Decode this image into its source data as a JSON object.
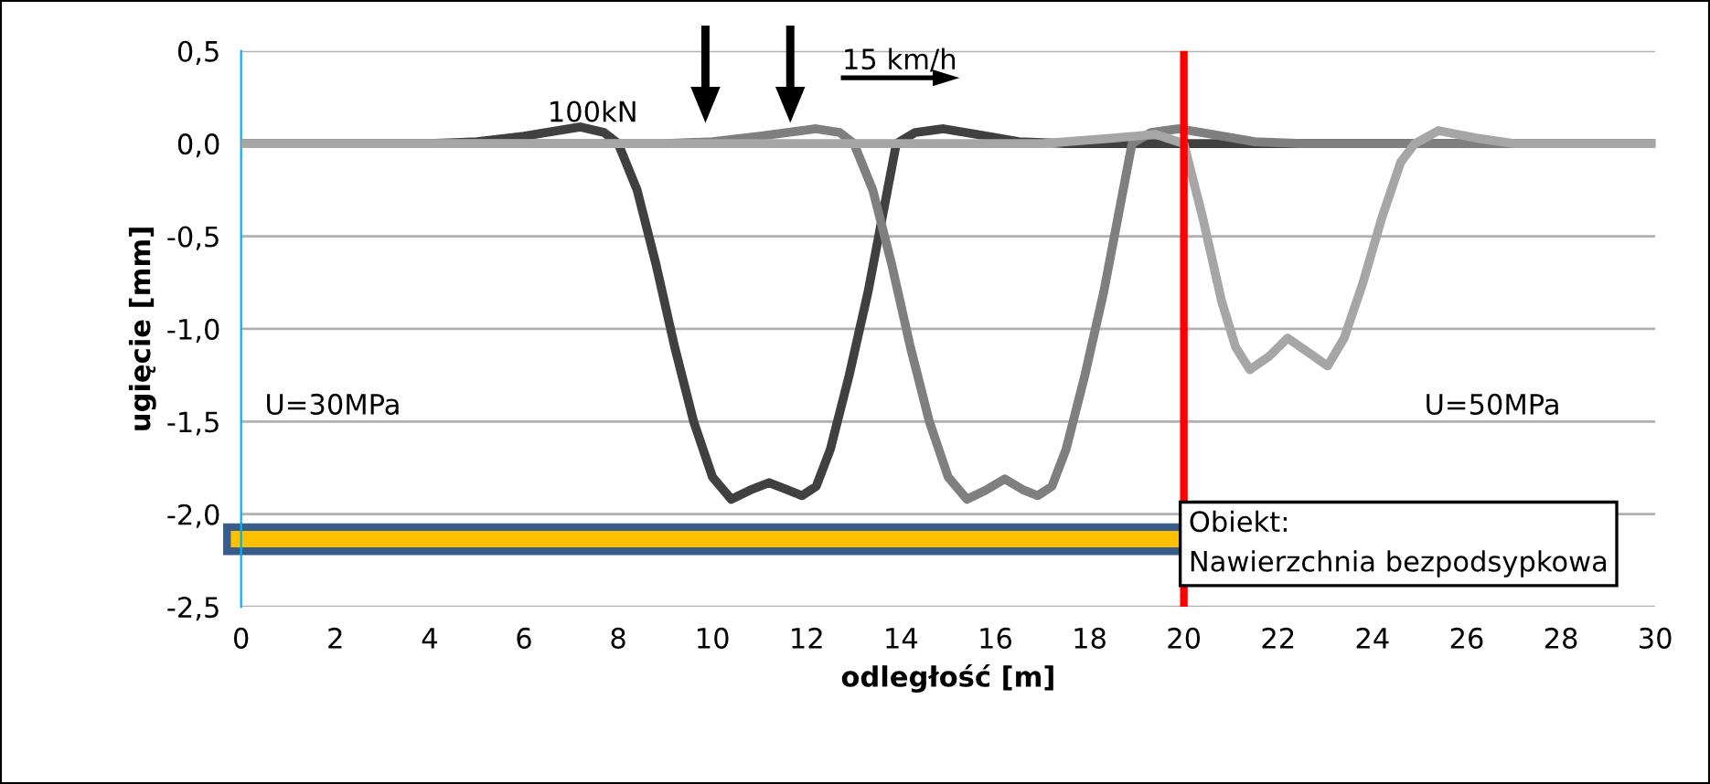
{
  "chart_data": {
    "type": "line",
    "xlabel": "odległość [m]",
    "ylabel": "ugięcie [mm]",
    "xlim": [
      0,
      30
    ],
    "xticks": [
      0,
      2,
      4,
      6,
      8,
      10,
      12,
      14,
      16,
      18,
      20,
      22,
      24,
      26,
      28,
      30
    ],
    "ylim": [
      -2.5,
      0.5
    ],
    "yticks": [
      {
        "value": 0.5,
        "label": "0,5"
      },
      {
        "value": 0,
        "label": "0,0"
      },
      {
        "value": -0.5,
        "label": "-0,5"
      },
      {
        "value": -1.0,
        "label": "-1,0"
      },
      {
        "value": -1.5,
        "label": "-1,5"
      },
      {
        "value": -2.0,
        "label": "-2,0"
      },
      {
        "value": -2.5,
        "label": "-2,5"
      }
    ],
    "grid": "y",
    "legend": false,
    "line_style": "solid",
    "marker": "none",
    "series": [
      {
        "color": "#404040",
        "x": [
          0,
          4,
          5,
          6,
          7.2,
          7.7,
          8.0,
          8.4,
          8.8,
          9.2,
          9.6,
          10.0,
          10.4,
          10.8,
          11.2,
          11.6,
          11.9,
          12.2,
          12.5,
          12.9,
          13.3,
          13.6,
          13.9,
          14.3,
          14.9,
          15.6,
          16.5,
          17.5,
          30
        ],
        "values": [
          0,
          0,
          0.01,
          0.04,
          0.09,
          0.06,
          0,
          -0.25,
          -0.65,
          -1.1,
          -1.5,
          -1.8,
          -1.92,
          -1.87,
          -1.83,
          -1.87,
          -1.9,
          -1.85,
          -1.65,
          -1.25,
          -0.8,
          -0.4,
          0,
          0.06,
          0.08,
          0.05,
          0.01,
          0,
          0
        ]
      },
      {
        "color": "#7f7f7f",
        "x": [
          0,
          9,
          10,
          11,
          12.2,
          12.7,
          13.0,
          13.4,
          13.8,
          14.2,
          14.6,
          15.0,
          15.4,
          15.8,
          16.2,
          16.6,
          16.9,
          17.2,
          17.5,
          17.9,
          18.3,
          18.6,
          18.9,
          19.3,
          19.9,
          20.6,
          21.5,
          22.5,
          30
        ],
        "values": [
          0,
          0,
          0.01,
          0.04,
          0.08,
          0.06,
          0,
          -0.25,
          -0.65,
          -1.1,
          -1.5,
          -1.8,
          -1.92,
          -1.87,
          -1.81,
          -1.87,
          -1.9,
          -1.85,
          -1.65,
          -1.25,
          -0.8,
          -0.4,
          0,
          0.06,
          0.08,
          0.05,
          0.01,
          0,
          0
        ]
      },
      {
        "color": "#a6a6a6",
        "x": [
          0,
          17,
          18.5,
          19.4,
          20.0,
          20.4,
          20.8,
          21.1,
          21.4,
          21.8,
          22.2,
          22.6,
          23.05,
          23.4,
          23.8,
          24.2,
          24.6,
          24.9,
          25.4,
          26.2,
          27,
          30
        ],
        "values": [
          0,
          0,
          0.03,
          0.05,
          0,
          -0.4,
          -0.85,
          -1.1,
          -1.22,
          -1.15,
          -1.05,
          -1.12,
          -1.2,
          -1.05,
          -0.75,
          -0.4,
          -0.1,
          0,
          0.07,
          0.03,
          0,
          0
        ]
      }
    ],
    "ref_lines": [
      {
        "axis": "x",
        "value": 20,
        "color": "#ff0000"
      }
    ],
    "annotations": [
      "100kN",
      "15 km/h",
      "U=30MPa",
      "U=50MPa",
      "Obiekt:\nNawierzchnia bezpodsypkowa"
    ]
  }
}
